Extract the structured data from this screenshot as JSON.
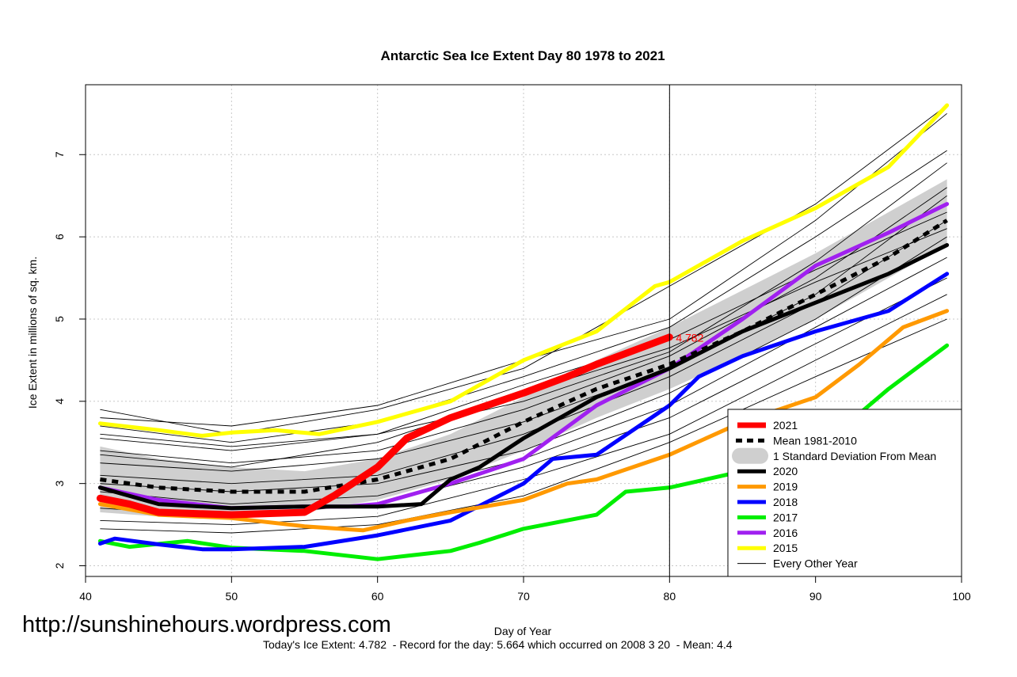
{
  "watermark": "http://sunshinehours.wordpress.com",
  "footer": "Today's Ice Extent: 4.782  - Record for the day: 5.664 which occurred on 2008 3 20  - Mean: 4.4",
  "chart_data": {
    "type": "line",
    "title": "Antarctic Sea Ice Extent Day 80 1978 to 2021",
    "xlabel": "Day of Year",
    "ylabel": "Ice Extent in millions of sq. km.",
    "xlim": [
      40,
      100
    ],
    "ylim": [
      1.87,
      7.85
    ],
    "x_ticks": [
      40,
      50,
      60,
      70,
      80,
      90,
      100
    ],
    "y_ticks": [
      2,
      3,
      4,
      5,
      6,
      7
    ],
    "grid": true,
    "marker_day": 80,
    "today_label": "4.782",
    "today_value": 4.782,
    "colors": {
      "2021": "#ff0000",
      "mean": "#000000",
      "sd": "#cfcfcf",
      "2020": "#000000",
      "2019": "#ff9900",
      "2018": "#0000ff",
      "2017": "#00ee00",
      "2016": "#a020f0",
      "2015": "#ffff00",
      "other": "#000000"
    },
    "legend": {
      "position": "bottom-right",
      "entries": [
        {
          "label": "2021",
          "key": "2021"
        },
        {
          "label": "Mean 1981-2010",
          "key": "mean"
        },
        {
          "label": "1 Standard Deviation From Mean",
          "key": "sd"
        },
        {
          "label": "2020",
          "key": "2020"
        },
        {
          "label": "2019",
          "key": "2019"
        },
        {
          "label": "2018",
          "key": "2018"
        },
        {
          "label": "2017",
          "key": "2017"
        },
        {
          "label": "2016",
          "key": "2016"
        },
        {
          "label": "2015",
          "key": "2015"
        },
        {
          "label": "Every Other Year",
          "key": "other"
        }
      ]
    },
    "sd_band": {
      "x": [
        41,
        45,
        50,
        55,
        60,
        65,
        70,
        75,
        80,
        85,
        90,
        95,
        99
      ],
      "upper": [
        3.45,
        3.3,
        3.2,
        3.15,
        3.3,
        3.6,
        4.05,
        4.5,
        4.9,
        5.35,
        5.8,
        6.3,
        6.7
      ],
      "lower": [
        2.65,
        2.6,
        2.6,
        2.65,
        2.8,
        3.05,
        3.4,
        3.8,
        4.15,
        4.55,
        5.0,
        5.5,
        5.9
      ]
    },
    "series": [
      {
        "name": "Mean 1981-2010",
        "key": "mean",
        "style": "dashed",
        "x": [
          41,
          45,
          50,
          55,
          60,
          65,
          70,
          75,
          80,
          85,
          90,
          95,
          99
        ],
        "values": [
          3.05,
          2.95,
          2.9,
          2.9,
          3.05,
          3.3,
          3.75,
          4.15,
          4.45,
          4.85,
          5.3,
          5.75,
          6.2
        ]
      },
      {
        "name": "2020",
        "key": "2020",
        "style": "solid",
        "x": [
          41,
          45,
          50,
          55,
          60,
          63,
          65,
          67,
          70,
          75,
          80,
          85,
          90,
          95,
          99
        ],
        "values": [
          2.95,
          2.75,
          2.7,
          2.72,
          2.72,
          2.75,
          3.05,
          3.2,
          3.55,
          4.05,
          4.4,
          4.85,
          5.2,
          5.55,
          5.9
        ]
      },
      {
        "name": "2019",
        "key": "2019",
        "style": "solid",
        "x": [
          41,
          45,
          50,
          55,
          59,
          62,
          65,
          70,
          73,
          75,
          80,
          85,
          90,
          93,
          96,
          99
        ],
        "values": [
          2.75,
          2.62,
          2.58,
          2.48,
          2.43,
          2.55,
          2.65,
          2.8,
          3.0,
          3.05,
          3.35,
          3.75,
          4.05,
          4.45,
          4.9,
          5.1
        ]
      },
      {
        "name": "2018",
        "key": "2018",
        "style": "solid",
        "x": [
          41,
          42,
          45,
          48,
          50,
          55,
          60,
          65,
          70,
          72,
          75,
          80,
          82,
          85,
          90,
          95,
          99
        ],
        "values": [
          2.27,
          2.33,
          2.26,
          2.2,
          2.2,
          2.23,
          2.37,
          2.55,
          3.0,
          3.3,
          3.35,
          3.95,
          4.3,
          4.55,
          4.85,
          5.1,
          5.55
        ]
      },
      {
        "name": "2017",
        "key": "2017",
        "style": "solid",
        "x": [
          41,
          43,
          47,
          50,
          55,
          60,
          62,
          65,
          67,
          70,
          75,
          77,
          80,
          85,
          90,
          93,
          95,
          99
        ],
        "values": [
          2.3,
          2.23,
          2.3,
          2.22,
          2.18,
          2.08,
          2.12,
          2.18,
          2.28,
          2.45,
          2.62,
          2.9,
          2.95,
          3.15,
          3.55,
          3.85,
          4.15,
          4.68
        ]
      },
      {
        "name": "2016",
        "key": "2016",
        "style": "solid",
        "x": [
          41,
          45,
          50,
          55,
          58,
          60,
          63,
          65,
          70,
          75,
          80,
          85,
          90,
          95,
          99
        ],
        "values": [
          2.95,
          2.8,
          2.7,
          2.72,
          2.72,
          2.75,
          2.9,
          3.0,
          3.3,
          3.95,
          4.4,
          5.0,
          5.65,
          6.05,
          6.4
        ]
      },
      {
        "name": "2015",
        "key": "2015",
        "style": "solid",
        "x": [
          41,
          45,
          48,
          50,
          53,
          56,
          60,
          65,
          70,
          75,
          79,
          80,
          85,
          90,
          95,
          99
        ],
        "values": [
          3.73,
          3.65,
          3.58,
          3.62,
          3.65,
          3.6,
          3.75,
          4.0,
          4.5,
          4.85,
          5.4,
          5.45,
          5.95,
          6.35,
          6.85,
          7.6
        ]
      },
      {
        "name": "2021",
        "key": "2021",
        "style": "solid",
        "x": [
          41,
          43,
          45,
          50,
          55,
          57,
          60,
          62,
          65,
          70,
          73,
          75,
          80
        ],
        "values": [
          2.82,
          2.75,
          2.65,
          2.62,
          2.65,
          2.85,
          3.2,
          3.55,
          3.8,
          4.1,
          4.3,
          4.45,
          4.78
        ]
      }
    ],
    "other_years": [
      {
        "x": [
          41,
          50,
          60,
          70,
          80,
          90,
          99
        ],
        "values": [
          3.9,
          3.6,
          3.9,
          4.4,
          5.4,
          6.4,
          7.6
        ]
      },
      {
        "x": [
          41,
          50,
          60,
          70,
          80,
          90,
          99
        ],
        "values": [
          3.8,
          3.7,
          3.95,
          4.5,
          5.0,
          6.2,
          7.5
        ]
      },
      {
        "x": [
          41,
          50,
          60,
          70,
          80,
          90,
          99
        ],
        "values": [
          3.7,
          3.5,
          3.75,
          4.3,
          4.9,
          6.0,
          7.05
        ]
      },
      {
        "x": [
          41,
          50,
          60,
          70,
          80,
          90,
          99
        ],
        "values": [
          3.55,
          3.4,
          3.6,
          4.0,
          4.6,
          5.7,
          6.9
        ]
      },
      {
        "x": [
          41,
          50,
          60,
          70,
          80,
          90,
          99
        ],
        "values": [
          3.4,
          3.25,
          3.4,
          3.9,
          4.55,
          5.5,
          6.6
        ]
      },
      {
        "x": [
          41,
          50,
          60,
          70,
          80,
          90,
          99
        ],
        "values": [
          3.25,
          3.15,
          3.3,
          3.75,
          4.4,
          5.3,
          6.5
        ]
      },
      {
        "x": [
          41,
          50,
          60,
          70,
          80,
          90,
          99
        ],
        "values": [
          3.1,
          3.0,
          3.1,
          3.6,
          4.3,
          5.2,
          6.2
        ]
      },
      {
        "x": [
          41,
          50,
          60,
          70,
          80,
          90,
          99
        ],
        "values": [
          3.0,
          2.9,
          3.0,
          3.4,
          4.1,
          5.0,
          6.0
        ]
      },
      {
        "x": [
          41,
          50,
          60,
          70,
          80,
          90,
          99
        ],
        "values": [
          2.9,
          2.75,
          2.85,
          3.3,
          3.95,
          4.9,
          5.75
        ]
      },
      {
        "x": [
          41,
          50,
          60,
          70,
          80,
          90,
          99
        ],
        "values": [
          2.7,
          2.6,
          2.75,
          3.2,
          3.8,
          4.7,
          5.5
        ]
      },
      {
        "x": [
          41,
          50,
          60,
          70,
          80,
          90,
          99
        ],
        "values": [
          2.55,
          2.5,
          2.6,
          3.05,
          3.6,
          4.5,
          5.3
        ]
      },
      {
        "x": [
          41,
          50,
          60,
          70,
          80,
          90,
          99
        ],
        "values": [
          2.45,
          2.4,
          2.5,
          2.85,
          3.5,
          4.3,
          5.0
        ]
      },
      {
        "x": [
          41,
          50,
          60,
          70,
          80,
          90,
          99
        ],
        "values": [
          3.6,
          3.45,
          3.6,
          4.2,
          4.75,
          5.6,
          6.3
        ]
      },
      {
        "x": [
          41,
          50,
          60,
          70,
          80,
          90,
          99
        ],
        "values": [
          3.35,
          3.2,
          3.5,
          4.1,
          4.65,
          5.45,
          6.1
        ]
      }
    ]
  }
}
